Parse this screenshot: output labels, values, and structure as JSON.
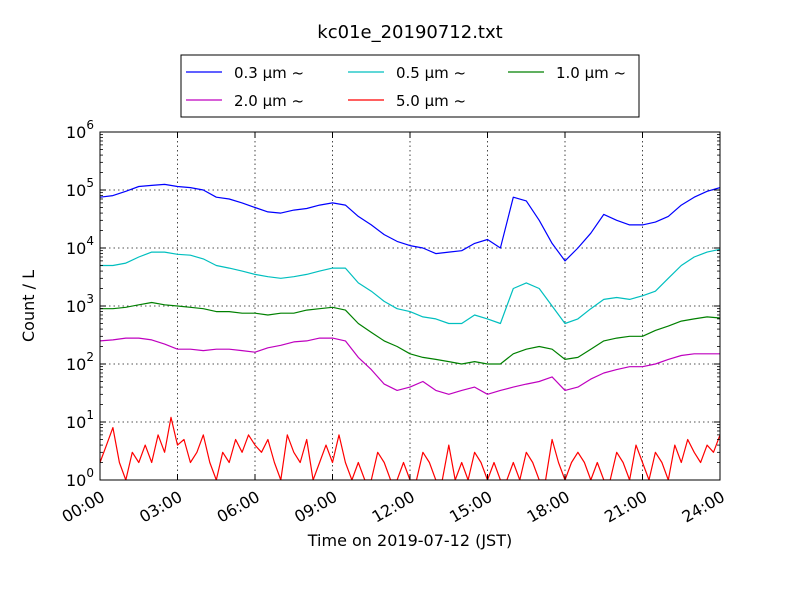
{
  "chart_data": {
    "type": "line",
    "title": "kc01e_20190712.txt",
    "xlabel": "Time on 2019-07-12 (JST)",
    "ylabel": "Count / L",
    "y_scale": "log",
    "ylim": [
      1,
      1000000
    ],
    "xlim": [
      "00:00",
      "24:00"
    ],
    "grid": true,
    "legend_position": "top",
    "x_tick_labels": [
      "00:00",
      "03:00",
      "06:00",
      "09:00",
      "12:00",
      "15:00",
      "18:00",
      "21:00",
      "24:00"
    ],
    "y_tick_labels": [
      {
        "base": "10",
        "exp": "0"
      },
      {
        "base": "10",
        "exp": "1"
      },
      {
        "base": "10",
        "exp": "2"
      },
      {
        "base": "10",
        "exp": "3"
      },
      {
        "base": "10",
        "exp": "4"
      },
      {
        "base": "10",
        "exp": "5"
      },
      {
        "base": "10",
        "exp": "6"
      }
    ],
    "series": [
      {
        "name": "0.3 μm ~",
        "color": "#0000ff",
        "x": [
          "00:00",
          "00:30",
          "01:00",
          "01:30",
          "02:00",
          "02:30",
          "03:00",
          "03:30",
          "04:00",
          "04:30",
          "05:00",
          "05:30",
          "06:00",
          "06:30",
          "07:00",
          "07:30",
          "08:00",
          "08:30",
          "09:00",
          "09:30",
          "10:00",
          "10:30",
          "11:00",
          "11:30",
          "12:00",
          "12:30",
          "13:00",
          "13:30",
          "14:00",
          "14:30",
          "15:00",
          "15:30",
          "16:00",
          "16:30",
          "17:00",
          "17:30",
          "18:00",
          "18:30",
          "19:00",
          "19:30",
          "20:00",
          "20:30",
          "21:00",
          "21:30",
          "22:00",
          "22:30",
          "23:00",
          "23:30",
          "24:00"
        ],
        "y": [
          75000,
          80000,
          95000,
          115000,
          120000,
          125000,
          115000,
          110000,
          100000,
          75000,
          70000,
          60000,
          50000,
          42000,
          40000,
          45000,
          48000,
          55000,
          60000,
          55000,
          35000,
          25000,
          17000,
          13000,
          11000,
          10000,
          8000,
          8500,
          9000,
          12000,
          14000,
          10000,
          75000,
          65000,
          30000,
          12000,
          6000,
          10000,
          18000,
          38000,
          30000,
          25000,
          25000,
          28000,
          35000,
          55000,
          75000,
          95000,
          110000
        ]
      },
      {
        "name": "0.5 μm ~",
        "color": "#00bfbf",
        "x": [
          "00:00",
          "00:30",
          "01:00",
          "01:30",
          "02:00",
          "02:30",
          "03:00",
          "03:30",
          "04:00",
          "04:30",
          "05:00",
          "05:30",
          "06:00",
          "06:30",
          "07:00",
          "07:30",
          "08:00",
          "08:30",
          "09:00",
          "09:30",
          "10:00",
          "10:30",
          "11:00",
          "11:30",
          "12:00",
          "12:30",
          "13:00",
          "13:30",
          "14:00",
          "14:30",
          "15:00",
          "15:30",
          "16:00",
          "16:30",
          "17:00",
          "17:30",
          "18:00",
          "18:30",
          "19:00",
          "19:30",
          "20:00",
          "20:30",
          "21:00",
          "21:30",
          "22:00",
          "22:30",
          "23:00",
          "23:30",
          "24:00"
        ],
        "y": [
          5000,
          5000,
          5500,
          7000,
          8500,
          8500,
          7800,
          7500,
          6500,
          5000,
          4500,
          4000,
          3500,
          3200,
          3000,
          3200,
          3500,
          4000,
          4500,
          4500,
          2500,
          1800,
          1200,
          900,
          800,
          650,
          600,
          500,
          500,
          700,
          600,
          500,
          2000,
          2500,
          2000,
          1000,
          500,
          600,
          900,
          1300,
          1400,
          1300,
          1500,
          1800,
          3000,
          5000,
          7000,
          8500,
          9500
        ]
      },
      {
        "name": "1.0 μm ~",
        "color": "#008000",
        "x": [
          "00:00",
          "00:30",
          "01:00",
          "01:30",
          "02:00",
          "02:30",
          "03:00",
          "03:30",
          "04:00",
          "04:30",
          "05:00",
          "05:30",
          "06:00",
          "06:30",
          "07:00",
          "07:30",
          "08:00",
          "08:30",
          "09:00",
          "09:30",
          "10:00",
          "10:30",
          "11:00",
          "11:30",
          "12:00",
          "12:30",
          "13:00",
          "13:30",
          "14:00",
          "14:30",
          "15:00",
          "15:30",
          "16:00",
          "16:30",
          "17:00",
          "17:30",
          "18:00",
          "18:30",
          "19:00",
          "19:30",
          "20:00",
          "20:30",
          "21:00",
          "21:30",
          "22:00",
          "22:30",
          "23:00",
          "23:30",
          "24:00"
        ],
        "y": [
          900,
          900,
          950,
          1050,
          1150,
          1050,
          1000,
          950,
          900,
          800,
          800,
          750,
          750,
          700,
          750,
          750,
          850,
          900,
          950,
          850,
          500,
          350,
          250,
          200,
          150,
          130,
          120,
          110,
          100,
          110,
          100,
          100,
          150,
          180,
          200,
          180,
          120,
          130,
          180,
          250,
          280,
          300,
          300,
          380,
          450,
          550,
          600,
          650,
          620
        ]
      },
      {
        "name": "2.0 μm ~",
        "color": "#bf00bf",
        "x": [
          "00:00",
          "00:30",
          "01:00",
          "01:30",
          "02:00",
          "02:30",
          "03:00",
          "03:30",
          "04:00",
          "04:30",
          "05:00",
          "05:30",
          "06:00",
          "06:30",
          "07:00",
          "07:30",
          "08:00",
          "08:30",
          "09:00",
          "09:30",
          "10:00",
          "10:30",
          "11:00",
          "11:30",
          "12:00",
          "12:30",
          "13:00",
          "13:30",
          "14:00",
          "14:30",
          "15:00",
          "15:30",
          "16:00",
          "16:30",
          "17:00",
          "17:30",
          "18:00",
          "18:30",
          "19:00",
          "19:30",
          "20:00",
          "20:30",
          "21:00",
          "21:30",
          "22:00",
          "22:30",
          "23:00",
          "23:30",
          "24:00"
        ],
        "y": [
          250,
          260,
          280,
          280,
          260,
          220,
          180,
          180,
          170,
          180,
          180,
          170,
          160,
          190,
          210,
          240,
          250,
          280,
          280,
          250,
          130,
          80,
          45,
          35,
          40,
          50,
          35,
          30,
          35,
          40,
          30,
          35,
          40,
          45,
          50,
          60,
          35,
          40,
          55,
          70,
          80,
          90,
          90,
          100,
          120,
          140,
          150,
          150,
          150
        ]
      },
      {
        "name": "5.0 μm ~",
        "color": "#ff0000",
        "x": [
          "00:00",
          "00:15",
          "00:30",
          "00:45",
          "01:00",
          "01:15",
          "01:30",
          "01:45",
          "02:00",
          "02:15",
          "02:30",
          "02:45",
          "03:00",
          "03:15",
          "03:30",
          "03:45",
          "04:00",
          "04:15",
          "04:30",
          "04:45",
          "05:00",
          "05:15",
          "05:30",
          "05:45",
          "06:00",
          "06:15",
          "06:30",
          "06:45",
          "07:00",
          "07:15",
          "07:30",
          "07:45",
          "08:00",
          "08:15",
          "08:30",
          "08:45",
          "09:00",
          "09:15",
          "09:30",
          "09:45",
          "10:00",
          "10:15",
          "10:30",
          "10:45",
          "11:00",
          "11:15",
          "11:30",
          "11:45",
          "12:00",
          "12:15",
          "12:30",
          "12:45",
          "13:00",
          "13:15",
          "13:30",
          "13:45",
          "14:00",
          "14:15",
          "14:30",
          "14:45",
          "15:00",
          "15:15",
          "15:30",
          "15:45",
          "16:00",
          "16:15",
          "16:30",
          "16:45",
          "17:00",
          "17:15",
          "17:30",
          "17:45",
          "18:00",
          "18:15",
          "18:30",
          "18:45",
          "19:00",
          "19:15",
          "19:30",
          "19:45",
          "20:00",
          "20:15",
          "20:30",
          "20:45",
          "21:00",
          "21:15",
          "21:30",
          "21:45",
          "22:00",
          "22:15",
          "22:30",
          "22:45",
          "23:00",
          "23:15",
          "23:30",
          "23:45",
          "24:00"
        ],
        "y": [
          2,
          4,
          8,
          2,
          1,
          3,
          2,
          4,
          2,
          6,
          3,
          12,
          4,
          5,
          2,
          3,
          6,
          2,
          1,
          3,
          2,
          5,
          3,
          6,
          4,
          3,
          5,
          2,
          1,
          6,
          3,
          2,
          5,
          1,
          2,
          4,
          2,
          6,
          2,
          1,
          2,
          1,
          1,
          3,
          2,
          1,
          1,
          2,
          1,
          1,
          3,
          2,
          1,
          1,
          4,
          1,
          2,
          1,
          3,
          2,
          1,
          2,
          1,
          1,
          2,
          1,
          3,
          2,
          1,
          1,
          5,
          2,
          1,
          2,
          3,
          2,
          1,
          2,
          1,
          1,
          3,
          2,
          1,
          4,
          2,
          1,
          3,
          2,
          1,
          4,
          2,
          5,
          3,
          2,
          4,
          3,
          6
        ]
      }
    ]
  }
}
